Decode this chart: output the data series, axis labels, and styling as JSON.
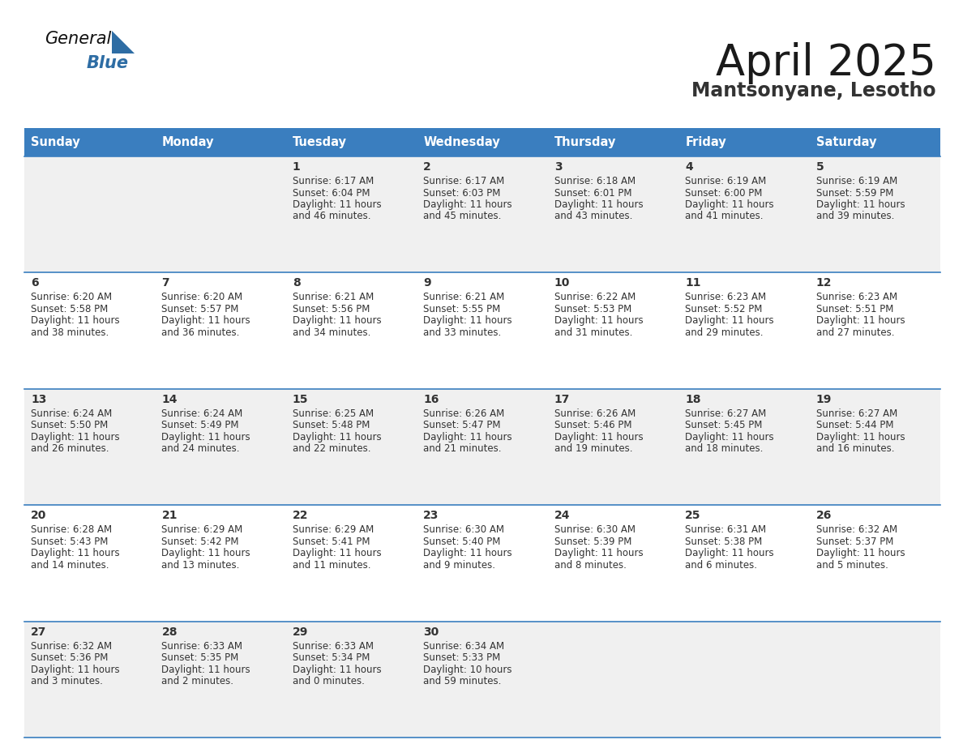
{
  "title": "April 2025",
  "subtitle": "Mantsonyane, Lesotho",
  "days_of_week": [
    "Sunday",
    "Monday",
    "Tuesday",
    "Wednesday",
    "Thursday",
    "Friday",
    "Saturday"
  ],
  "header_bg": "#3a7ebf",
  "header_text": "#ffffff",
  "cell_bg_odd": "#f0f0f0",
  "cell_bg_even": "#ffffff",
  "cell_text": "#333333",
  "border_color": "#3a7ebf",
  "title_color": "#1a1a1a",
  "subtitle_color": "#333333",
  "logo_black": "#111111",
  "logo_blue": "#2e6da4",
  "calendar_data": [
    [
      {
        "day": "",
        "sunrise": "",
        "sunset": "",
        "daylight": ""
      },
      {
        "day": "",
        "sunrise": "",
        "sunset": "",
        "daylight": ""
      },
      {
        "day": "1",
        "sunrise": "6:17 AM",
        "sunset": "6:04 PM",
        "daylight": "11 hours and 46 minutes."
      },
      {
        "day": "2",
        "sunrise": "6:17 AM",
        "sunset": "6:03 PM",
        "daylight": "11 hours and 45 minutes."
      },
      {
        "day": "3",
        "sunrise": "6:18 AM",
        "sunset": "6:01 PM",
        "daylight": "11 hours and 43 minutes."
      },
      {
        "day": "4",
        "sunrise": "6:19 AM",
        "sunset": "6:00 PM",
        "daylight": "11 hours and 41 minutes."
      },
      {
        "day": "5",
        "sunrise": "6:19 AM",
        "sunset": "5:59 PM",
        "daylight": "11 hours and 39 minutes."
      }
    ],
    [
      {
        "day": "6",
        "sunrise": "6:20 AM",
        "sunset": "5:58 PM",
        "daylight": "11 hours and 38 minutes."
      },
      {
        "day": "7",
        "sunrise": "6:20 AM",
        "sunset": "5:57 PM",
        "daylight": "11 hours and 36 minutes."
      },
      {
        "day": "8",
        "sunrise": "6:21 AM",
        "sunset": "5:56 PM",
        "daylight": "11 hours and 34 minutes."
      },
      {
        "day": "9",
        "sunrise": "6:21 AM",
        "sunset": "5:55 PM",
        "daylight": "11 hours and 33 minutes."
      },
      {
        "day": "10",
        "sunrise": "6:22 AM",
        "sunset": "5:53 PM",
        "daylight": "11 hours and 31 minutes."
      },
      {
        "day": "11",
        "sunrise": "6:23 AM",
        "sunset": "5:52 PM",
        "daylight": "11 hours and 29 minutes."
      },
      {
        "day": "12",
        "sunrise": "6:23 AM",
        "sunset": "5:51 PM",
        "daylight": "11 hours and 27 minutes."
      }
    ],
    [
      {
        "day": "13",
        "sunrise": "6:24 AM",
        "sunset": "5:50 PM",
        "daylight": "11 hours and 26 minutes."
      },
      {
        "day": "14",
        "sunrise": "6:24 AM",
        "sunset": "5:49 PM",
        "daylight": "11 hours and 24 minutes."
      },
      {
        "day": "15",
        "sunrise": "6:25 AM",
        "sunset": "5:48 PM",
        "daylight": "11 hours and 22 minutes."
      },
      {
        "day": "16",
        "sunrise": "6:26 AM",
        "sunset": "5:47 PM",
        "daylight": "11 hours and 21 minutes."
      },
      {
        "day": "17",
        "sunrise": "6:26 AM",
        "sunset": "5:46 PM",
        "daylight": "11 hours and 19 minutes."
      },
      {
        "day": "18",
        "sunrise": "6:27 AM",
        "sunset": "5:45 PM",
        "daylight": "11 hours and 18 minutes."
      },
      {
        "day": "19",
        "sunrise": "6:27 AM",
        "sunset": "5:44 PM",
        "daylight": "11 hours and 16 minutes."
      }
    ],
    [
      {
        "day": "20",
        "sunrise": "6:28 AM",
        "sunset": "5:43 PM",
        "daylight": "11 hours and 14 minutes."
      },
      {
        "day": "21",
        "sunrise": "6:29 AM",
        "sunset": "5:42 PM",
        "daylight": "11 hours and 13 minutes."
      },
      {
        "day": "22",
        "sunrise": "6:29 AM",
        "sunset": "5:41 PM",
        "daylight": "11 hours and 11 minutes."
      },
      {
        "day": "23",
        "sunrise": "6:30 AM",
        "sunset": "5:40 PM",
        "daylight": "11 hours and 9 minutes."
      },
      {
        "day": "24",
        "sunrise": "6:30 AM",
        "sunset": "5:39 PM",
        "daylight": "11 hours and 8 minutes."
      },
      {
        "day": "25",
        "sunrise": "6:31 AM",
        "sunset": "5:38 PM",
        "daylight": "11 hours and 6 minutes."
      },
      {
        "day": "26",
        "sunrise": "6:32 AM",
        "sunset": "5:37 PM",
        "daylight": "11 hours and 5 minutes."
      }
    ],
    [
      {
        "day": "27",
        "sunrise": "6:32 AM",
        "sunset": "5:36 PM",
        "daylight": "11 hours and 3 minutes."
      },
      {
        "day": "28",
        "sunrise": "6:33 AM",
        "sunset": "5:35 PM",
        "daylight": "11 hours and 2 minutes."
      },
      {
        "day": "29",
        "sunrise": "6:33 AM",
        "sunset": "5:34 PM",
        "daylight": "11 hours and 0 minutes."
      },
      {
        "day": "30",
        "sunrise": "6:34 AM",
        "sunset": "5:33 PM",
        "daylight": "10 hours and 59 minutes."
      },
      {
        "day": "",
        "sunrise": "",
        "sunset": "",
        "daylight": ""
      },
      {
        "day": "",
        "sunrise": "",
        "sunset": "",
        "daylight": ""
      },
      {
        "day": "",
        "sunrise": "",
        "sunset": "",
        "daylight": ""
      }
    ]
  ]
}
